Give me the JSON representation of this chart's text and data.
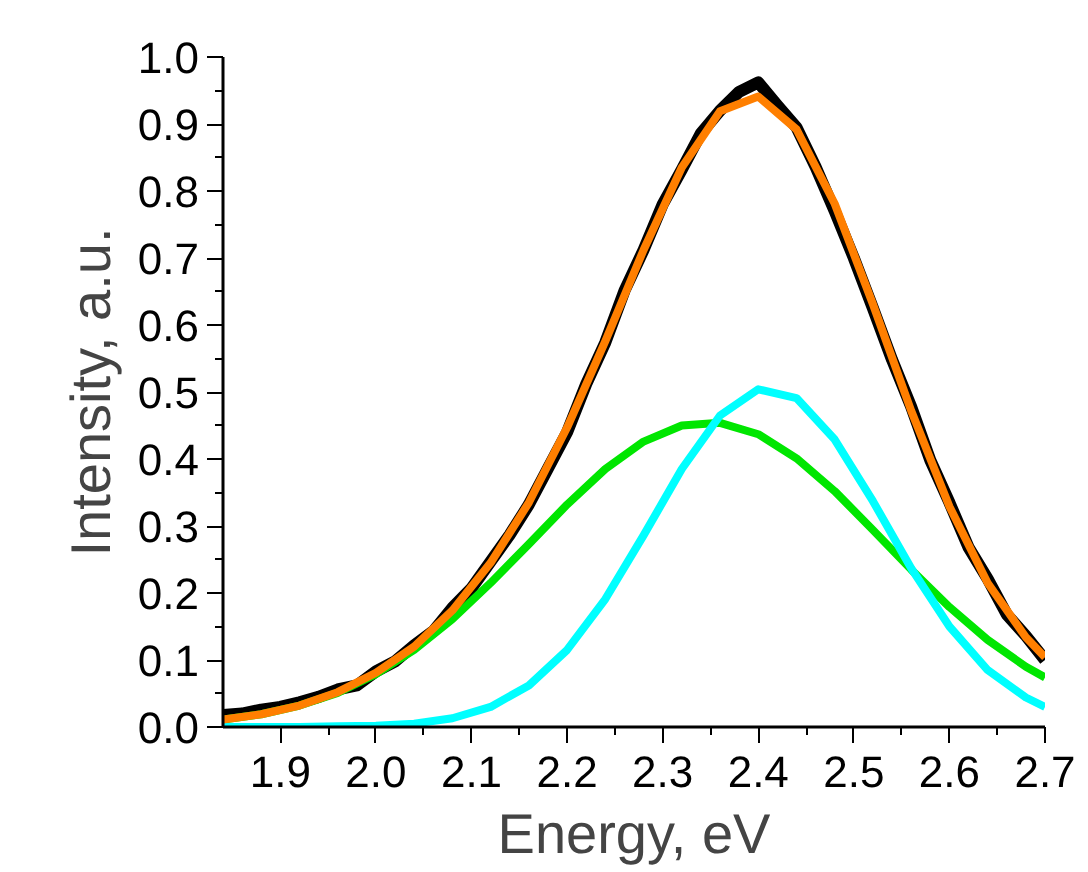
{
  "chart_data": {
    "type": "line",
    "xlabel": "Energy, eV",
    "ylabel": "Intensity, a.u.",
    "xlim": [
      1.84,
      2.7
    ],
    "ylim": [
      0,
      1.0
    ],
    "xticks": [
      1.9,
      {
        "value": 2.0,
        "label": "2.0"
      },
      2.1,
      2.2,
      2.3,
      2.4,
      2.5,
      2.6,
      2.7
    ],
    "yticks": [
      {
        "value": 0,
        "label": "0.0"
      },
      0.1,
      0.2,
      0.3,
      0.4,
      0.5,
      0.6,
      0.7,
      0.8,
      0.9,
      {
        "value": 1.0,
        "label": "1.0"
      }
    ],
    "grid": false,
    "marker": "none",
    "line_style": "solid",
    "series": [
      {
        "color": "#000000",
        "x": [
          1.84,
          1.86,
          1.88,
          1.9,
          1.92,
          1.94,
          1.96,
          1.98,
          2.0,
          2.02,
          2.04,
          2.06,
          2.08,
          2.1,
          2.12,
          2.14,
          2.16,
          2.18,
          2.2,
          2.22,
          2.24,
          2.26,
          2.28,
          2.3,
          2.32,
          2.34,
          2.36,
          2.38,
          2.4,
          2.42,
          2.44,
          2.46,
          2.48,
          2.5,
          2.52,
          2.54,
          2.56,
          2.58,
          2.6,
          2.62,
          2.64,
          2.66,
          2.68,
          2.7
        ],
        "values": [
          0.018,
          0.02,
          0.026,
          0.03,
          0.037,
          0.045,
          0.056,
          0.062,
          0.083,
          0.098,
          0.122,
          0.143,
          0.178,
          0.207,
          0.247,
          0.287,
          0.332,
          0.386,
          0.44,
          0.512,
          0.574,
          0.651,
          0.712,
          0.78,
          0.832,
          0.886,
          0.92,
          0.948,
          0.962,
          0.928,
          0.895,
          0.836,
          0.77,
          0.7,
          0.625,
          0.548,
          0.478,
          0.398,
          0.335,
          0.268,
          0.221,
          0.168,
          0.136,
          0.1
        ]
      },
      {
        "color": "#00e600",
        "x": [
          1.84,
          1.88,
          1.92,
          1.96,
          2.0,
          2.04,
          2.08,
          2.12,
          2.16,
          2.2,
          2.24,
          2.28,
          2.32,
          2.36,
          2.4,
          2.44,
          2.48,
          2.52,
          2.56,
          2.6,
          2.64,
          2.68,
          2.7
        ],
        "values": [
          0.011,
          0.019,
          0.032,
          0.051,
          0.079,
          0.115,
          0.161,
          0.215,
          0.273,
          0.332,
          0.385,
          0.426,
          0.45,
          0.454,
          0.437,
          0.401,
          0.352,
          0.294,
          0.235,
          0.179,
          0.13,
          0.09,
          0.074
        ]
      },
      {
        "color": "#00ffff",
        "x": [
          1.84,
          1.88,
          1.92,
          1.96,
          2.0,
          2.04,
          2.08,
          2.12,
          2.16,
          2.2,
          2.24,
          2.28,
          2.32,
          2.36,
          2.4,
          2.44,
          2.48,
          2.52,
          2.56,
          2.6,
          2.64,
          2.68,
          2.7
        ],
        "values": [
          0.0,
          0.0,
          0.0,
          0.001,
          0.002,
          0.005,
          0.013,
          0.03,
          0.062,
          0.115,
          0.191,
          0.286,
          0.385,
          0.465,
          0.504,
          0.491,
          0.429,
          0.337,
          0.237,
          0.15,
          0.085,
          0.044,
          0.03
        ]
      },
      {
        "color": "#ff7f00",
        "x": [
          1.84,
          1.88,
          1.92,
          1.96,
          2.0,
          2.04,
          2.08,
          2.12,
          2.16,
          2.2,
          2.24,
          2.28,
          2.32,
          2.36,
          2.4,
          2.44,
          2.48,
          2.52,
          2.56,
          2.6,
          2.64,
          2.68,
          2.7
        ],
        "values": [
          0.011,
          0.019,
          0.032,
          0.052,
          0.081,
          0.12,
          0.174,
          0.245,
          0.335,
          0.447,
          0.576,
          0.712,
          0.835,
          0.919,
          0.941,
          0.892,
          0.781,
          0.631,
          0.472,
          0.329,
          0.215,
          0.134,
          0.104
        ]
      }
    ]
  }
}
